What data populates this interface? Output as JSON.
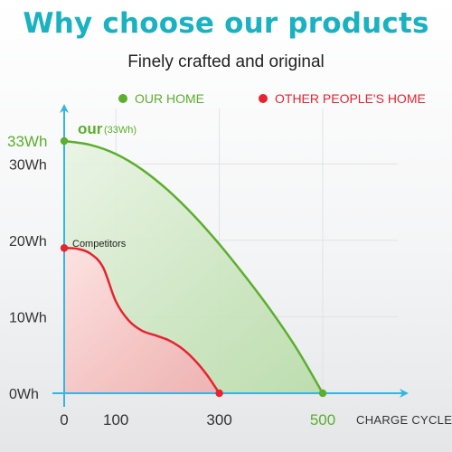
{
  "title": "Why choose our products",
  "subtitle": "Finely crafted and original",
  "legend": {
    "ours": "OUR HOME",
    "others": "OTHER PEOPLE'S HOME"
  },
  "colors": {
    "accent": "#1ab2c1",
    "ours": "#5cae2d",
    "others": "#e8232f",
    "axis": "#35b5df"
  },
  "chart_data": {
    "type": "area",
    "xlabel": "CHARGE CYCLES",
    "ylabel": "",
    "xlim": [
      0,
      500
    ],
    "ylim": [
      0,
      33
    ],
    "grid": true,
    "legend_position": "top",
    "x_ticks": [
      "0",
      "100",
      "300",
      "500"
    ],
    "y_ticks": [
      "0Wh",
      "10Wh",
      "20Wh",
      "30Wh",
      "33Wh"
    ],
    "series": [
      {
        "name": "OUR HOME",
        "label": "our",
        "label_detail": "(33Wh)",
        "x": [
          0,
          50,
          100,
          150,
          200,
          250,
          300,
          350,
          400,
          450,
          500
        ],
        "y": [
          33,
          32.5,
          31.3,
          29.3,
          26.6,
          23.3,
          19.5,
          15.3,
          10.8,
          5.8,
          0
        ]
      },
      {
        "name": "OTHER PEOPLE'S HOME",
        "label": "Competitors",
        "x": [
          0,
          25,
          50,
          75,
          100,
          125,
          150,
          175,
          200,
          225,
          250,
          275,
          300
        ],
        "y": [
          19,
          18.9,
          18.3,
          16.5,
          12,
          9.5,
          8.2,
          7.6,
          7,
          6,
          4.5,
          2.5,
          0
        ]
      }
    ]
  }
}
